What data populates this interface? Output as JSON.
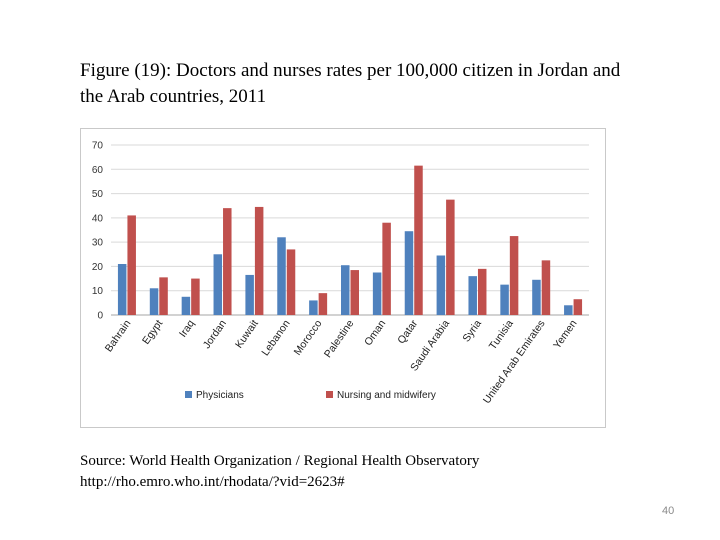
{
  "figure": {
    "title": "Figure (19): Doctors and nurses rates per 100,000 citizen in Jordan and the Arab countries, 2011",
    "source_line1": "Source: World Health Organization / Regional Health Observatory",
    "source_line2": "http://rho.emro.who.int/rhodata/?vid=2623#"
  },
  "page_number": "40",
  "chart_data": {
    "type": "bar",
    "title": "",
    "xlabel": "",
    "ylabel": "",
    "ylim": [
      0,
      70
    ],
    "yticks": [
      0,
      10,
      20,
      30,
      40,
      50,
      60,
      70
    ],
    "grid": true,
    "legend_position": "bottom",
    "categories": [
      "Bahrain",
      "Egypt",
      "Iraq",
      "Jordan",
      "Kuwait",
      "Lebanon",
      "Morocco",
      "Palestine",
      "Oman",
      "Qatar",
      "Saudi Arabia",
      "Syria",
      "Tunisia",
      "United Arab Emirates",
      "Yemen"
    ],
    "series": [
      {
        "name": "Physicians",
        "color": "#4f81bd",
        "values": [
          21,
          11,
          7.5,
          25,
          16.5,
          32,
          6,
          20.5,
          17.5,
          34.5,
          24.5,
          16,
          12.5,
          14.5,
          4
        ]
      },
      {
        "name": "Nursing and midwifery",
        "color": "#c0504d",
        "values": [
          41,
          15.5,
          15,
          44,
          44.5,
          27,
          9,
          18.5,
          38,
          61.5,
          47.5,
          19,
          32.5,
          22.5,
          6.5
        ]
      }
    ]
  }
}
